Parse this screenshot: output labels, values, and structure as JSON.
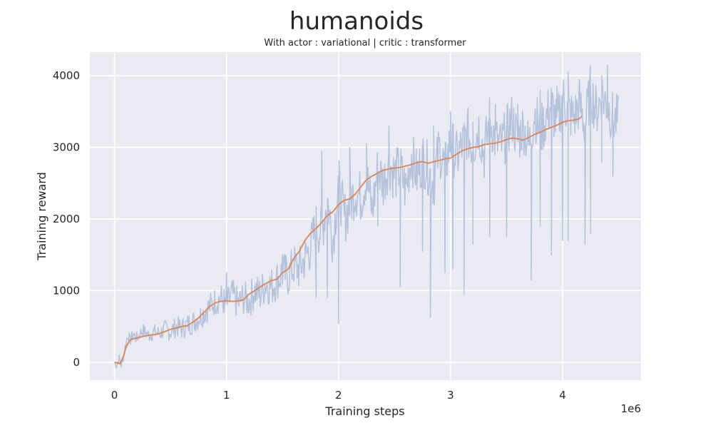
{
  "chart_data": {
    "type": "line",
    "title": "humanoids",
    "subtitle": "With actor : variational | critic : transformer",
    "xlabel": "Training steps",
    "ylabel": "Training reward",
    "x_offset_label": "1e6",
    "xlim": [
      -0.22,
      4.7
    ],
    "ylim": [
      -250,
      4330
    ],
    "x_ticks": [
      0,
      1,
      2,
      3,
      4
    ],
    "y_ticks": [
      0,
      1000,
      2000,
      3000,
      4000
    ],
    "x_tick_labels": [
      "0",
      "1",
      "2",
      "3",
      "4"
    ],
    "y_tick_labels": [
      "0",
      "1000",
      "2000",
      "3000",
      "4000"
    ],
    "grid": true,
    "series": [
      {
        "kind": "raw",
        "color": "#b5c2dc",
        "x": [
          0.0,
          0.02,
          0.04,
          0.06,
          0.08,
          0.1,
          0.12,
          0.14,
          0.17,
          0.2,
          0.25,
          0.3,
          0.35,
          0.4,
          0.45,
          0.5,
          0.55,
          0.6,
          0.65,
          0.7,
          0.75,
          0.8,
          0.85,
          0.9,
          0.95,
          1.0,
          1.05,
          1.1,
          1.15,
          1.2,
          1.25,
          1.3,
          1.35,
          1.4,
          1.45,
          1.5,
          1.55,
          1.6,
          1.65,
          1.7,
          1.75,
          1.8,
          1.85,
          1.9,
          1.95,
          2.0,
          2.05,
          2.1,
          2.15,
          2.2,
          2.25,
          2.3,
          2.35,
          2.4,
          2.45,
          2.5,
          2.55,
          2.6,
          2.65,
          2.7,
          2.75,
          2.8,
          2.85,
          2.9,
          2.95,
          3.0,
          3.05,
          3.1,
          3.15,
          3.2,
          3.25,
          3.3,
          3.35,
          3.4,
          3.45,
          3.5,
          3.55,
          3.6,
          3.65,
          3.7,
          3.75,
          3.8,
          3.85,
          3.9,
          3.95,
          4.0,
          4.05,
          4.1,
          4.15,
          4.2,
          4.25,
          4.3,
          4.35,
          4.4,
          4.45,
          4.5
        ],
        "y": [
          0,
          -50,
          60,
          -40,
          80,
          250,
          380,
          300,
          400,
          330,
          450,
          380,
          420,
          400,
          460,
          430,
          500,
          470,
          520,
          560,
          620,
          700,
          780,
          850,
          900,
          800,
          950,
          820,
          900,
          850,
          1000,
          950,
          1100,
          1050,
          1150,
          1250,
          1200,
          1350,
          1300,
          1450,
          1600,
          1900,
          1800,
          2300,
          1700,
          2500,
          2000,
          2200,
          2400,
          2300,
          2600,
          2100,
          2700,
          2500,
          2800,
          2600,
          2700,
          2400,
          2900,
          2600,
          2850,
          2700,
          2500,
          3000,
          2700,
          3100,
          2850,
          3000,
          3200,
          3000,
          3300,
          2900,
          3400,
          3100,
          3000,
          3200,
          3400,
          3100,
          3300,
          3000,
          3500,
          3200,
          3400,
          3600,
          3300,
          3700,
          3500,
          3400,
          3600,
          3300,
          3800,
          3500,
          3700,
          3600,
          3400,
          3350
        ],
        "dips_x": [
          0.98,
          1.8,
          1.9,
          2.0,
          2.35,
          2.55,
          2.75,
          2.82,
          2.95,
          3.02,
          3.12,
          3.2,
          3.35,
          3.5,
          3.72,
          3.8,
          3.9,
          4.0,
          4.05,
          4.2,
          4.25,
          4.35,
          4.45
        ],
        "dips_y": [
          700,
          900,
          900,
          540,
          1900,
          1050,
          1550,
          630,
          1250,
          1300,
          950,
          1650,
          1750,
          1750,
          1150,
          1900,
          1500,
          1700,
          1700,
          1650,
          1800,
          2800,
          2600
        ],
        "spikes_x": [
          1.0,
          1.5,
          1.85,
          2.1,
          2.25,
          2.45,
          2.85,
          3.0,
          3.2,
          3.4,
          3.6,
          3.8,
          3.95,
          4.05,
          4.15,
          4.25,
          4.35,
          4.4
        ],
        "spikes_y": [
          1250,
          1500,
          2950,
          3000,
          3050,
          3300,
          3300,
          3500,
          3350,
          3600,
          3600,
          3800,
          3850,
          4050,
          3950,
          3850,
          4000,
          4150
        ]
      },
      {
        "kind": "smoothed",
        "color": "#dd8452",
        "x": [
          0.0,
          0.03,
          0.05,
          0.08,
          0.1,
          0.13,
          0.15,
          0.2,
          0.25,
          0.3,
          0.35,
          0.4,
          0.45,
          0.5,
          0.55,
          0.6,
          0.65,
          0.7,
          0.75,
          0.8,
          0.85,
          0.9,
          0.95,
          1.0,
          1.05,
          1.1,
          1.15,
          1.2,
          1.25,
          1.3,
          1.35,
          1.4,
          1.45,
          1.5,
          1.55,
          1.6,
          1.65,
          1.7,
          1.75,
          1.8,
          1.85,
          1.9,
          1.95,
          2.0,
          2.05,
          2.1,
          2.15,
          2.2,
          2.25,
          2.3,
          2.35,
          2.4,
          2.45,
          2.5,
          2.55,
          2.6,
          2.65,
          2.7,
          2.75,
          2.8,
          2.85,
          2.9,
          2.95,
          3.0,
          3.05,
          3.1,
          3.15,
          3.2,
          3.25,
          3.3,
          3.35,
          3.4,
          3.45,
          3.5,
          3.55,
          3.6,
          3.65,
          3.7,
          3.75,
          3.8,
          3.85,
          3.9,
          3.95,
          4.0,
          4.05,
          4.1,
          4.15,
          4.17
        ],
        "y": [
          0,
          -10,
          -20,
          80,
          200,
          290,
          320,
          340,
          360,
          375,
          385,
          400,
          430,
          460,
          480,
          500,
          510,
          560,
          620,
          700,
          780,
          830,
          850,
          860,
          850,
          855,
          870,
          950,
          1000,
          1050,
          1100,
          1140,
          1160,
          1250,
          1300,
          1450,
          1550,
          1700,
          1800,
          1870,
          1950,
          2050,
          2100,
          2200,
          2260,
          2280,
          2350,
          2450,
          2550,
          2600,
          2640,
          2680,
          2700,
          2710,
          2720,
          2740,
          2760,
          2790,
          2800,
          2780,
          2800,
          2820,
          2840,
          2850,
          2900,
          2950,
          2980,
          3000,
          3010,
          3040,
          3050,
          3060,
          3080,
          3110,
          3130,
          3120,
          3100,
          3140,
          3180,
          3210,
          3250,
          3280,
          3310,
          3350,
          3370,
          3380,
          3400,
          3430
        ]
      }
    ]
  }
}
